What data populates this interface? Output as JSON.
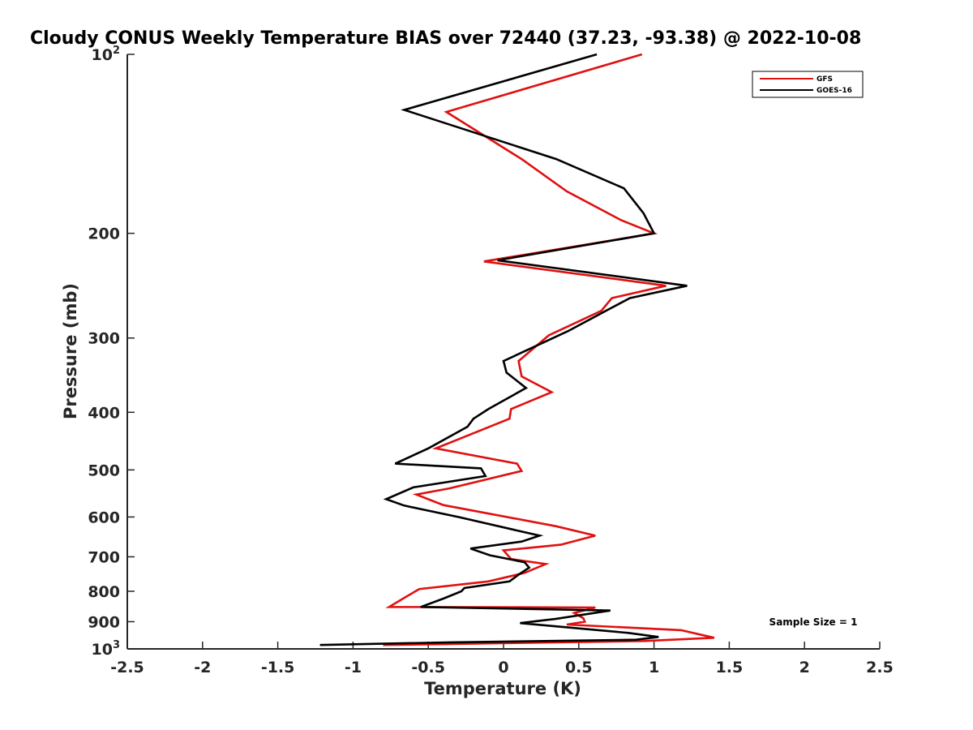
{
  "chart_data": {
    "type": "line",
    "title": "Cloudy CONUS Weekly Temperature BIAS over 72440 (37.23, -93.38) @ 2022-10-08",
    "xlabel": "Temperature (K)",
    "ylabel": "Pressure (mb)",
    "xlim": [
      -2.5,
      2.5
    ],
    "ylim": [
      100,
      1000
    ],
    "y_scale": "log",
    "y_reversed": true,
    "grid": false,
    "legend_position": "top-right",
    "x_ticks": [
      "-2.5",
      "-2",
      "-1.5",
      "-1",
      "-0.5",
      "0",
      "0.5",
      "1",
      "1.5",
      "2",
      "2.5"
    ],
    "x_tick_values": [
      -2.5,
      -2,
      -1.5,
      -1,
      -0.5,
      0,
      0.5,
      1,
      1.5,
      2,
      2.5
    ],
    "y_ticks": [
      {
        "value": 100,
        "label": "10",
        "sup": "2"
      },
      {
        "value": 200,
        "label": "200",
        "sup": ""
      },
      {
        "value": 300,
        "label": "300",
        "sup": ""
      },
      {
        "value": 400,
        "label": "400",
        "sup": ""
      },
      {
        "value": 500,
        "label": "500",
        "sup": ""
      },
      {
        "value": 600,
        "label": "600",
        "sup": ""
      },
      {
        "value": 700,
        "label": "700",
        "sup": ""
      },
      {
        "value": 800,
        "label": "800",
        "sup": ""
      },
      {
        "value": 900,
        "label": "900",
        "sup": ""
      },
      {
        "value": 1000,
        "label": "10",
        "sup": "3"
      }
    ],
    "series": [
      {
        "name": "GFS",
        "color": "#e01010",
        "points": [
          [
            0.92,
            100
          ],
          [
            -0.38,
            125
          ],
          [
            0.12,
            150
          ],
          [
            0.42,
            170
          ],
          [
            0.78,
            190
          ],
          [
            1.0,
            200
          ],
          [
            -0.13,
            223
          ],
          [
            1.08,
            245
          ],
          [
            0.72,
            257
          ],
          [
            0.65,
            270
          ],
          [
            0.3,
            297
          ],
          [
            0.1,
            328
          ],
          [
            0.12,
            348
          ],
          [
            0.32,
            370
          ],
          [
            0.05,
            395
          ],
          [
            0.04,
            410
          ],
          [
            -0.45,
            460
          ],
          [
            0.09,
            488
          ],
          [
            0.12,
            502
          ],
          [
            -0.36,
            537
          ],
          [
            -0.58,
            550
          ],
          [
            -0.4,
            573
          ],
          [
            0.35,
            622
          ],
          [
            0.61,
            645
          ],
          [
            0.38,
            668
          ],
          [
            0.0,
            683
          ],
          [
            0.05,
            706
          ],
          [
            0.28,
            720
          ],
          [
            0.14,
            745
          ],
          [
            -0.1,
            770
          ],
          [
            -0.56,
            793
          ],
          [
            -0.65,
            818
          ],
          [
            -0.76,
            850
          ],
          [
            0.61,
            852
          ],
          [
            0.47,
            870
          ],
          [
            0.53,
            888
          ],
          [
            0.54,
            900
          ],
          [
            0.42,
            910
          ],
          [
            1.18,
            930
          ],
          [
            1.4,
            958
          ],
          [
            0.93,
            970
          ],
          [
            -0.8,
            985
          ]
        ]
      },
      {
        "name": "GOES-16",
        "color": "#000000",
        "points": [
          [
            0.62,
            100
          ],
          [
            -0.66,
            124
          ],
          [
            0.35,
            150
          ],
          [
            0.8,
            168
          ],
          [
            0.93,
            185
          ],
          [
            1.0,
            200
          ],
          [
            -0.04,
            222
          ],
          [
            1.22,
            245
          ],
          [
            0.84,
            257
          ],
          [
            0.68,
            270
          ],
          [
            0.43,
            292
          ],
          [
            0.0,
            328
          ],
          [
            0.02,
            343
          ],
          [
            0.15,
            364
          ],
          [
            -0.1,
            395
          ],
          [
            -0.2,
            410
          ],
          [
            -0.24,
            423
          ],
          [
            -0.5,
            460
          ],
          [
            -0.72,
            488
          ],
          [
            -0.15,
            497
          ],
          [
            -0.12,
            512
          ],
          [
            -0.6,
            535
          ],
          [
            -0.78,
            560
          ],
          [
            -0.66,
            574
          ],
          [
            -0.3,
            600
          ],
          [
            0.24,
            645
          ],
          [
            0.12,
            660
          ],
          [
            -0.22,
            678
          ],
          [
            -0.09,
            696
          ],
          [
            0.14,
            715
          ],
          [
            0.17,
            730
          ],
          [
            0.1,
            750
          ],
          [
            0.04,
            770
          ],
          [
            -0.26,
            790
          ],
          [
            -0.28,
            800
          ],
          [
            -0.4,
            823
          ],
          [
            -0.55,
            850
          ],
          [
            0.71,
            862
          ],
          [
            0.35,
            890
          ],
          [
            0.11,
            905
          ],
          [
            0.83,
            940
          ],
          [
            1.03,
            955
          ],
          [
            0.88,
            965
          ],
          [
            -0.35,
            975
          ],
          [
            -1.22,
            985
          ]
        ]
      }
    ],
    "annotation": "Sample Size = 1"
  }
}
